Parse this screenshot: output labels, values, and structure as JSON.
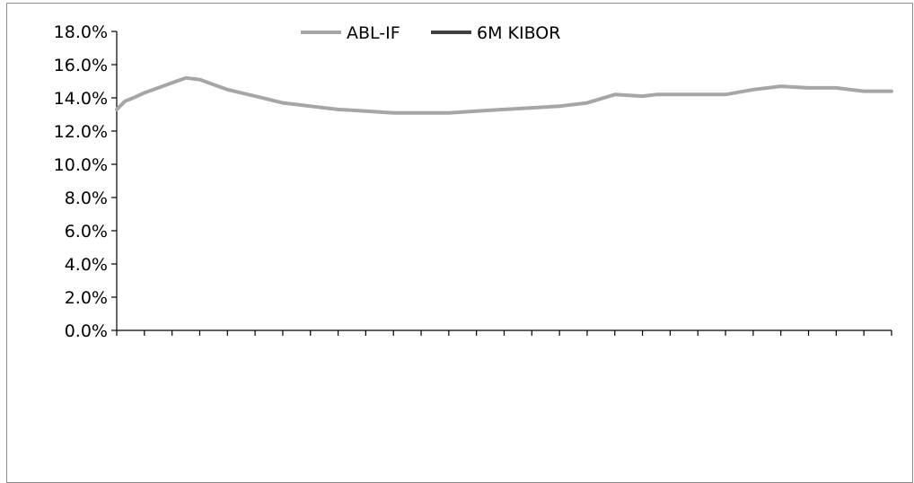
{
  "chart_data": {
    "type": "line",
    "title": "",
    "xlabel": "",
    "ylabel": "",
    "ylim": [
      0,
      18
    ],
    "y_tick_step": 2,
    "y_tick_format": "percent_one_decimal",
    "x_tick_count": 29,
    "grid": false,
    "legend": {
      "placement": "top-center",
      "entries": [
        {
          "label": "ABL-IF",
          "color": "#a6a6a6"
        },
        {
          "label": "6M KIBOR",
          "color": "#404040"
        }
      ]
    },
    "series": [
      {
        "name": "ABL-IF",
        "color": "#a6a6a6",
        "x": [
          0,
          0.3,
          0.6,
          1,
          1.5,
          2,
          2.5,
          3,
          3.5,
          4,
          4.5,
          5,
          5.5,
          6,
          6.5,
          7,
          7.5,
          8,
          9,
          10,
          11,
          12,
          13,
          14,
          15,
          16,
          17,
          18,
          19,
          19.5,
          20,
          21,
          22,
          23,
          24,
          25,
          26,
          26.5,
          27,
          27.5,
          28
        ],
        "values": [
          13.3,
          13.8,
          14.0,
          14.3,
          14.6,
          14.9,
          15.2,
          15.1,
          14.8,
          14.5,
          14.3,
          14.1,
          13.9,
          13.7,
          13.6,
          13.5,
          13.4,
          13.3,
          13.2,
          13.1,
          13.1,
          13.1,
          13.2,
          13.3,
          13.4,
          13.5,
          13.7,
          14.2,
          14.1,
          14.2,
          14.2,
          14.2,
          14.2,
          14.5,
          14.7,
          14.6,
          14.6,
          14.5,
          14.4,
          14.4,
          14.4
        ]
      },
      {
        "name": "6M KIBOR",
        "color": "#404040",
        "x": [],
        "values": []
      }
    ]
  }
}
